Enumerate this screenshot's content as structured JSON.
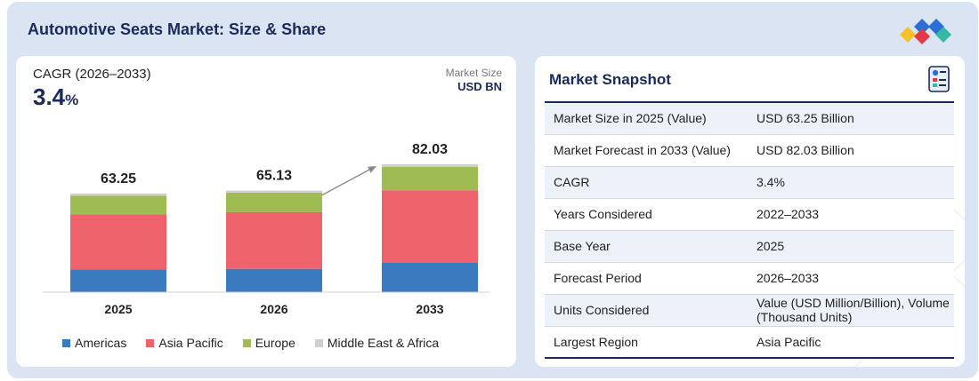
{
  "header": {
    "title": "Automotive Seats Market: Size & Share"
  },
  "cagr": {
    "label": "CAGR (2026–2033)",
    "value": "3.4",
    "unit": "%"
  },
  "unit_label": {
    "line1": "Market Size",
    "line2": "USD BN"
  },
  "chart_data": {
    "type": "bar",
    "stacked": true,
    "categories": [
      "2025",
      "2026",
      "2033"
    ],
    "totals": [
      "63.25",
      "65.13",
      "82.03"
    ],
    "series": [
      {
        "name": "Americas",
        "color": "#3a7abf",
        "values": [
          14.6,
          15.0,
          18.8
        ]
      },
      {
        "name": "Asia Pacific",
        "color": "#ee626b",
        "values": [
          35.4,
          36.4,
          46.6
        ]
      },
      {
        "name": "Europe",
        "color": "#9fbc52",
        "values": [
          11.9,
          12.4,
          15.0
        ]
      },
      {
        "name": "Middle East & Africa",
        "color": "#cfcfcf",
        "values": [
          1.35,
          1.33,
          1.63
        ]
      }
    ],
    "trend_arrow": {
      "from": "2026",
      "to": "2033"
    }
  },
  "snapshot": {
    "title": "Market Snapshot",
    "rows": [
      {
        "key": "Market Size in 2025 (Value)",
        "value": "USD 63.25 Billion"
      },
      {
        "key": "Market Forecast in 2033 (Value)",
        "value": "USD 82.03 Billion"
      },
      {
        "key": "CAGR",
        "value": "3.4%"
      },
      {
        "key": "Years Considered",
        "value": "2022–2033"
      },
      {
        "key": "Base Year",
        "value": "2025"
      },
      {
        "key": "Forecast Period",
        "value": "2026–2033"
      },
      {
        "key": "Units Considered",
        "value": "Value (USD Million/Billion), Volume (Thousand Units)"
      },
      {
        "key": "Largest Region",
        "value": "Asia Pacific"
      }
    ]
  },
  "icons": {
    "logo": "brand-logo-icon",
    "snapshot": "report-icon"
  },
  "colors": {
    "title": "#1b2a5e",
    "frame": "#dbe4f3"
  }
}
